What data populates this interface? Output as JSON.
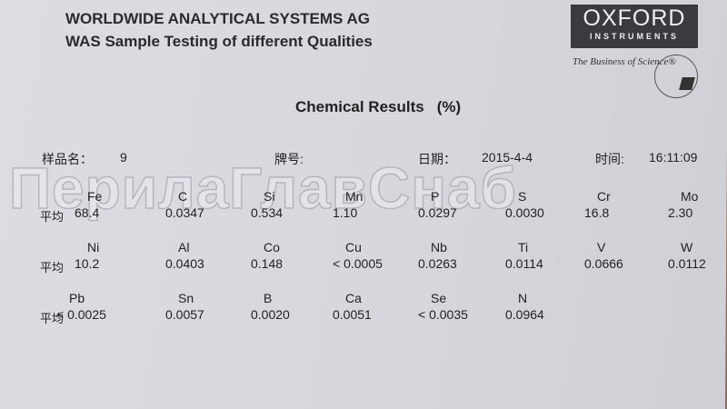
{
  "header": {
    "line1": "WORLDWIDE ANALYTICAL SYSTEMS AG",
    "line2": "WAS Sample Testing of different Qualities"
  },
  "logo": {
    "name": "OXFORD",
    "sub": "INSTRUMENTS",
    "tagline": "The Business of Science®"
  },
  "section": {
    "title": "Chemical Results",
    "unit": "(%)"
  },
  "meta": {
    "sample_label": "样品名：",
    "sample_value": "9",
    "grade_label": "牌号:",
    "date_label": "日期：",
    "date_value": "2015-4-4",
    "time_label": "时间:",
    "time_value": "16:11:09"
  },
  "avg_label": "平均",
  "rows": [
    [
      {
        "el": "Fe",
        "v": "68.4"
      },
      {
        "el": "C",
        "v": "0.0347"
      },
      {
        "el": "Si",
        "v": "0.534"
      },
      {
        "el": "Mn",
        "v": "1.10"
      },
      {
        "el": "P",
        "v": "0.0297"
      },
      {
        "el": "S",
        "v": "0.0030"
      },
      {
        "el": "Cr",
        "v": "16.8"
      },
      {
        "el": "Mo",
        "v": "2.30"
      }
    ],
    [
      {
        "el": "Ni",
        "v": "10.2"
      },
      {
        "el": "Al",
        "v": "0.0403"
      },
      {
        "el": "Co",
        "v": "0.148"
      },
      {
        "el": "Cu",
        "v": "< 0.0005"
      },
      {
        "el": "Nb",
        "v": "0.0263"
      },
      {
        "el": "Ti",
        "v": "0.0114"
      },
      {
        "el": "V",
        "v": "0.0666"
      },
      {
        "el": "W",
        "v": "0.0112"
      }
    ],
    [
      {
        "el": "Pb",
        "v": "< 0.0025"
      },
      {
        "el": "Sn",
        "v": "0.0057"
      },
      {
        "el": "B",
        "v": "0.0020"
      },
      {
        "el": "Ca",
        "v": "0.0051"
      },
      {
        "el": "Se",
        "v": "< 0.0035"
      },
      {
        "el": "N",
        "v": "0.0964"
      }
    ]
  ],
  "watermark": "ПерилаГлавСнаб"
}
